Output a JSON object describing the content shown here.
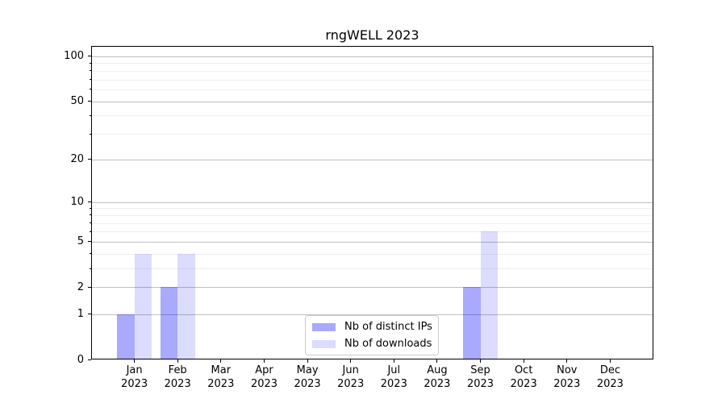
{
  "chart_data": {
    "type": "bar",
    "title": "rngWELL 2023",
    "categories": [
      "Jan",
      "Feb",
      "Mar",
      "Apr",
      "May",
      "Jun",
      "Jul",
      "Aug",
      "Sep",
      "Oct",
      "Nov",
      "Dec"
    ],
    "year_label": "2023",
    "series": [
      {
        "name": "Nb of distinct IPs",
        "values": [
          1,
          2,
          0,
          0,
          0,
          0,
          0,
          0,
          2,
          0,
          0,
          0
        ],
        "color_hex": "#a9a9f8",
        "color_css": "rgba(10,10,250,0.35)"
      },
      {
        "name": "Nb of downloads",
        "values": [
          4,
          4,
          0,
          0,
          0,
          0,
          0,
          0,
          6,
          0,
          0,
          0
        ],
        "color_hex": "#dcdcfa",
        "color_css": "rgba(10,10,250,0.14)"
      }
    ],
    "xlabel": "",
    "ylabel": "",
    "yscale": "log1p",
    "ylim": [
      0,
      117
    ],
    "yticks": [
      0,
      1,
      2,
      5,
      10,
      20,
      50,
      100
    ],
    "yticks_minor": [
      3,
      4,
      6,
      7,
      8,
      9,
      30,
      40,
      60,
      70,
      80,
      90
    ],
    "grid": true,
    "legend_position": "lower center",
    "colors": {
      "spine": "#000000",
      "grid_major": "#c0c0c0",
      "grid_minor": "#eeeeee",
      "legend_border": "#cccccc",
      "background": "#ffffff"
    }
  }
}
